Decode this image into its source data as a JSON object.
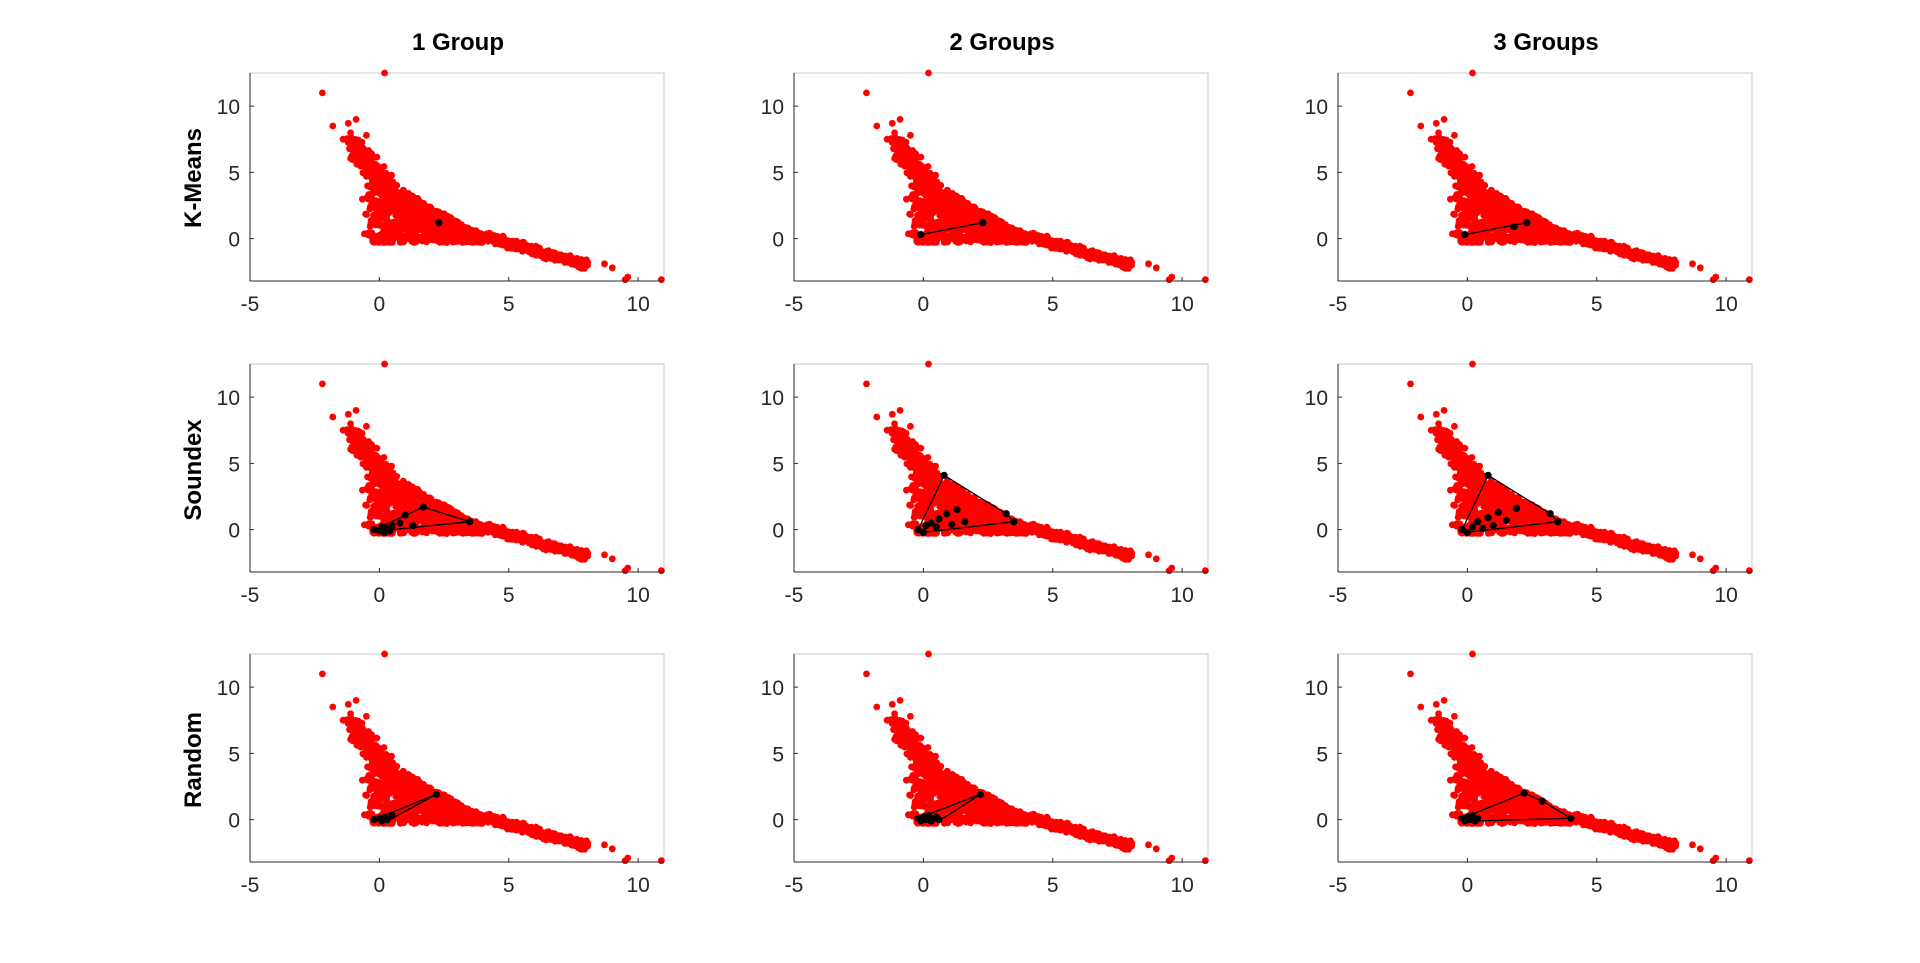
{
  "figure": {
    "column_titles": [
      "1 Group",
      "2 Groups",
      "3 Groups"
    ],
    "row_titles": [
      "K-Means",
      "Soundex",
      "Random"
    ]
  },
  "colors": {
    "background": "#ffffff",
    "points": "#ff0000",
    "highlight": "#000000",
    "axes": "#262626",
    "box": "#c8c8c8"
  },
  "chart_data": [
    {
      "type": "scatter",
      "row": "K-Means",
      "column": "1 Group",
      "xlim": [
        -5,
        11
      ],
      "ylim": [
        -3.2,
        12.5
      ],
      "xticks": [
        "-5",
        "0",
        "5",
        "10"
      ],
      "yticks": [
        "0",
        "5",
        "10"
      ],
      "series": [
        {
          "name": "all points",
          "color": "#ff0000",
          "description": "dense red point cloud, diagonal band from (-2, 11) to (11, -3)"
        },
        {
          "name": "selected",
          "color": "#000000",
          "points": [
            [
              2.3,
              1.2
            ]
          ],
          "hull": []
        }
      ]
    },
    {
      "type": "scatter",
      "row": "K-Means",
      "column": "2 Groups",
      "xlim": [
        -5,
        11
      ],
      "ylim": [
        -3.2,
        12.5
      ],
      "xticks": [
        "-5",
        "0",
        "5",
        "10"
      ],
      "yticks": [
        "0",
        "5",
        "10"
      ],
      "series": [
        {
          "name": "all points",
          "color": "#ff0000"
        },
        {
          "name": "selected",
          "color": "#000000",
          "points": [
            [
              -0.1,
              0.3
            ],
            [
              2.3,
              1.2
            ]
          ],
          "hull": [
            [
              -0.1,
              0.3
            ],
            [
              2.3,
              1.2
            ]
          ]
        }
      ]
    },
    {
      "type": "scatter",
      "row": "K-Means",
      "column": "3 Groups",
      "xlim": [
        -5,
        11
      ],
      "ylim": [
        -3.2,
        12.5
      ],
      "xticks": [
        "-5",
        "0",
        "5",
        "10"
      ],
      "yticks": [
        "0",
        "5",
        "10"
      ],
      "series": [
        {
          "name": "all points",
          "color": "#ff0000"
        },
        {
          "name": "selected",
          "color": "#000000",
          "points": [
            [
              -0.1,
              0.3
            ],
            [
              1.8,
              0.9
            ],
            [
              2.3,
              1.2
            ]
          ],
          "hull": [
            [
              -0.1,
              0.3
            ],
            [
              2.3,
              1.2
            ]
          ]
        }
      ]
    },
    {
      "type": "scatter",
      "row": "Soundex",
      "column": "1 Group",
      "xlim": [
        -5,
        11
      ],
      "ylim": [
        -3.2,
        12.5
      ],
      "xticks": [
        "-5",
        "0",
        "5",
        "10"
      ],
      "yticks": [
        "0",
        "5",
        "10"
      ],
      "series": [
        {
          "name": "all points",
          "color": "#ff0000"
        },
        {
          "name": "selected",
          "color": "#000000",
          "points": [
            [
              -0.2,
              0.0
            ],
            [
              0.0,
              -0.1
            ],
            [
              0.1,
              0.2
            ],
            [
              0.2,
              -0.2
            ],
            [
              0.3,
              0.1
            ],
            [
              0.4,
              -0.1
            ],
            [
              0.5,
              0.3
            ],
            [
              0.8,
              0.5
            ],
            [
              1.0,
              1.1
            ],
            [
              1.3,
              0.3
            ],
            [
              1.7,
              1.7
            ],
            [
              3.5,
              0.6
            ]
          ],
          "hull": [
            [
              -0.2,
              0.0
            ],
            [
              1.7,
              1.7
            ],
            [
              3.5,
              0.6
            ],
            [
              0.0,
              -0.1
            ]
          ]
        }
      ]
    },
    {
      "type": "scatter",
      "row": "Soundex",
      "column": "2 Groups",
      "xlim": [
        -5,
        11
      ],
      "ylim": [
        -3.2,
        12.5
      ],
      "xticks": [
        "-5",
        "0",
        "5",
        "10"
      ],
      "yticks": [
        "0",
        "5",
        "10"
      ],
      "series": [
        {
          "name": "all points",
          "color": "#ff0000"
        },
        {
          "name": "selected",
          "color": "#000000",
          "points": [
            [
              -0.2,
              0.0
            ],
            [
              0.0,
              -0.2
            ],
            [
              0.1,
              0.3
            ],
            [
              0.3,
              0.5
            ],
            [
              0.5,
              0.2
            ],
            [
              0.6,
              0.8
            ],
            [
              0.9,
              1.2
            ],
            [
              1.1,
              0.4
            ],
            [
              1.3,
              1.5
            ],
            [
              1.6,
              0.6
            ],
            [
              0.8,
              4.1
            ],
            [
              3.2,
              1.2
            ],
            [
              3.5,
              0.6
            ]
          ],
          "hull": [
            [
              -0.2,
              0.0
            ],
            [
              0.8,
              4.1
            ],
            [
              3.2,
              1.2
            ],
            [
              3.5,
              0.6
            ],
            [
              0.0,
              -0.2
            ]
          ]
        }
      ]
    },
    {
      "type": "scatter",
      "row": "Soundex",
      "column": "3 Groups",
      "xlim": [
        -5,
        11
      ],
      "ylim": [
        -3.2,
        12.5
      ],
      "xticks": [
        "-5",
        "0",
        "5",
        "10"
      ],
      "yticks": [
        "0",
        "5",
        "10"
      ],
      "series": [
        {
          "name": "all points",
          "color": "#ff0000"
        },
        {
          "name": "selected",
          "color": "#000000",
          "points": [
            [
              -0.2,
              0.0
            ],
            [
              0.0,
              -0.2
            ],
            [
              0.2,
              0.2
            ],
            [
              0.4,
              0.6
            ],
            [
              0.6,
              0.1
            ],
            [
              0.8,
              0.9
            ],
            [
              1.0,
              0.3
            ],
            [
              1.2,
              1.3
            ],
            [
              1.5,
              0.7
            ],
            [
              1.9,
              1.6
            ],
            [
              0.8,
              4.1
            ],
            [
              3.2,
              1.2
            ],
            [
              3.5,
              0.6
            ]
          ],
          "hull": [
            [
              -0.2,
              0.0
            ],
            [
              0.8,
              4.1
            ],
            [
              3.2,
              1.2
            ],
            [
              3.5,
              0.6
            ],
            [
              0.0,
              -0.2
            ]
          ]
        }
      ]
    },
    {
      "type": "scatter",
      "row": "Random",
      "column": "1 Group",
      "xlim": [
        -5,
        11
      ],
      "ylim": [
        -3.2,
        12.5
      ],
      "xticks": [
        "-5",
        "0",
        "5",
        "10"
      ],
      "yticks": [
        "0",
        "5",
        "10"
      ],
      "series": [
        {
          "name": "all points",
          "color": "#ff0000"
        },
        {
          "name": "selected",
          "color": "#000000",
          "points": [
            [
              -0.2,
              0.0
            ],
            [
              0.0,
              0.1
            ],
            [
              0.1,
              -0.1
            ],
            [
              0.2,
              0.2
            ],
            [
              0.3,
              0.0
            ],
            [
              0.5,
              0.3
            ],
            [
              2.2,
              1.9
            ]
          ],
          "hull": [
            [
              -0.2,
              0.0
            ],
            [
              2.2,
              1.9
            ],
            [
              0.3,
              -0.1
            ]
          ]
        }
      ]
    },
    {
      "type": "scatter",
      "row": "Random",
      "column": "2 Groups",
      "xlim": [
        -5,
        11
      ],
      "ylim": [
        -3.2,
        12.5
      ],
      "xticks": [
        "-5",
        "0",
        "5",
        "10"
      ],
      "yticks": [
        "0",
        "5",
        "10"
      ],
      "series": [
        {
          "name": "all points",
          "color": "#ff0000"
        },
        {
          "name": "selected",
          "color": "#000000",
          "points": [
            [
              -0.2,
              0.1
            ],
            [
              -0.1,
              -0.1
            ],
            [
              0.0,
              0.2
            ],
            [
              0.1,
              0.0
            ],
            [
              0.2,
              0.3
            ],
            [
              0.3,
              -0.1
            ],
            [
              0.4,
              0.1
            ],
            [
              0.5,
              0.2
            ],
            [
              0.6,
              0.0
            ],
            [
              2.2,
              1.9
            ]
          ],
          "hull": [
            [
              -0.2,
              0.1
            ],
            [
              2.2,
              1.9
            ],
            [
              0.6,
              -0.1
            ]
          ]
        }
      ]
    },
    {
      "type": "scatter",
      "row": "Random",
      "column": "3 Groups",
      "xlim": [
        -5,
        11
      ],
      "ylim": [
        -3.2,
        12.5
      ],
      "xticks": [
        "-5",
        "0",
        "5",
        "10"
      ],
      "yticks": [
        "0",
        "5",
        "10"
      ],
      "series": [
        {
          "name": "all points",
          "color": "#ff0000"
        },
        {
          "name": "selected",
          "color": "#000000",
          "points": [
            [
              -0.2,
              0.1
            ],
            [
              -0.1,
              -0.1
            ],
            [
              0.0,
              0.2
            ],
            [
              0.1,
              0.0
            ],
            [
              0.2,
              0.3
            ],
            [
              0.3,
              -0.1
            ],
            [
              0.4,
              0.1
            ],
            [
              2.2,
              2.0
            ],
            [
              2.9,
              1.4
            ],
            [
              4.0,
              0.1
            ]
          ],
          "hull": [
            [
              -0.2,
              0.1
            ],
            [
              2.2,
              2.0
            ],
            [
              2.9,
              1.4
            ],
            [
              4.0,
              0.1
            ],
            [
              0.4,
              -0.1
            ]
          ]
        }
      ]
    }
  ]
}
